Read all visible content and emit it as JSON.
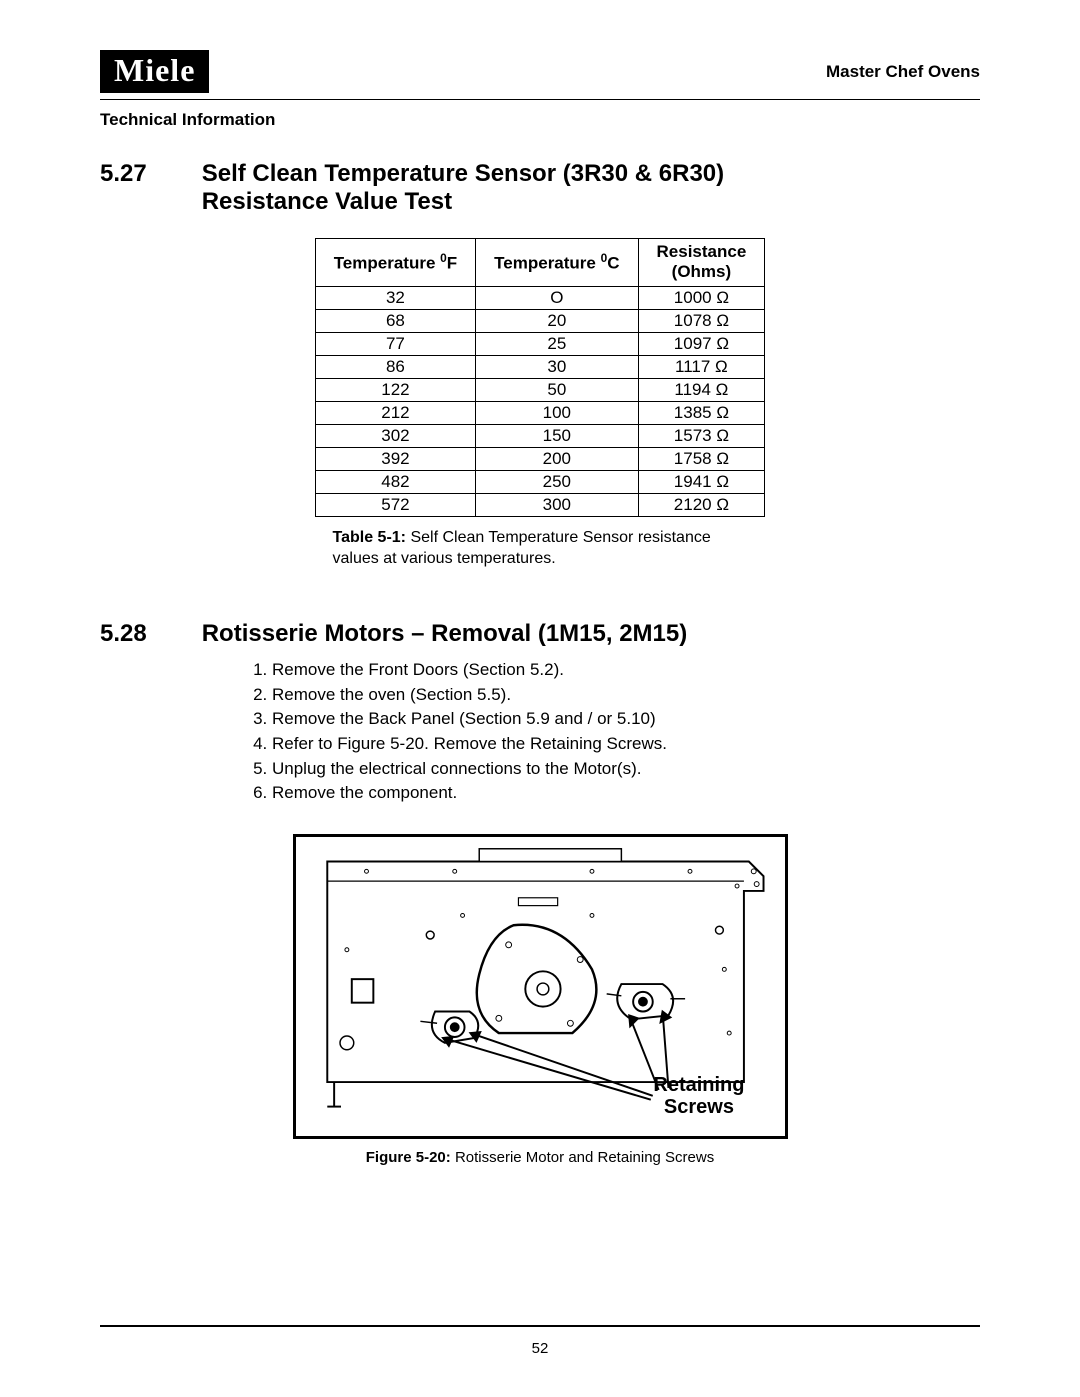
{
  "header": {
    "logo_text": "Miele",
    "product": "Master Chef Ovens",
    "tech_info": "Technical Information"
  },
  "section527": {
    "number": "5.27",
    "title_line1": "Self Clean Temperature Sensor (3R30 & 6R30)",
    "title_line2": "Resistance Value Test"
  },
  "table": {
    "col1": "Temperature ",
    "col1_unit": "0",
    "col1_suffix": "F",
    "col2": "Temperature ",
    "col2_unit": "0",
    "col2_suffix": "C",
    "col3_line1": "Resistance",
    "col3_line2": "(Ohms)",
    "rows": [
      {
        "f": "32",
        "c": "O",
        "r": "1000 Ω"
      },
      {
        "f": "68",
        "c": "20",
        "r": "1078 Ω"
      },
      {
        "f": "77",
        "c": "25",
        "r": "1097 Ω"
      },
      {
        "f": "86",
        "c": "30",
        "r": "1117 Ω"
      },
      {
        "f": "122",
        "c": "50",
        "r": "1194 Ω"
      },
      {
        "f": "212",
        "c": "100",
        "r": "1385 Ω"
      },
      {
        "f": "302",
        "c": "150",
        "r": "1573 Ω"
      },
      {
        "f": "392",
        "c": "200",
        "r": "1758 Ω"
      },
      {
        "f": "482",
        "c": "250",
        "r": "1941 Ω"
      },
      {
        "f": "572",
        "c": "300",
        "r": "2120 Ω"
      }
    ],
    "caption_label": "Table 5-1:",
    "caption_text": " Self Clean Temperature Sensor resistance values at various temperatures."
  },
  "section528": {
    "number": "5.28",
    "title": "Rotisserie Motors – Removal (1M15, 2M15)",
    "steps": [
      "Remove the Front Doors (Section 5.2).",
      "Remove the oven (Section 5.5).",
      "Remove the Back Panel (Section 5.9 and / or 5.10)",
      "Refer to Figure 5-20. Remove the Retaining Screws.",
      "Unplug the electrical connections to the Motor(s).",
      "Remove the component."
    ]
  },
  "figure": {
    "retaining_line1": "Retaining",
    "retaining_line2": "Screws",
    "caption_label": "Figure 5-20:",
    "caption_text": " Rotisserie Motor and Retaining Screws"
  },
  "page_number": "52"
}
